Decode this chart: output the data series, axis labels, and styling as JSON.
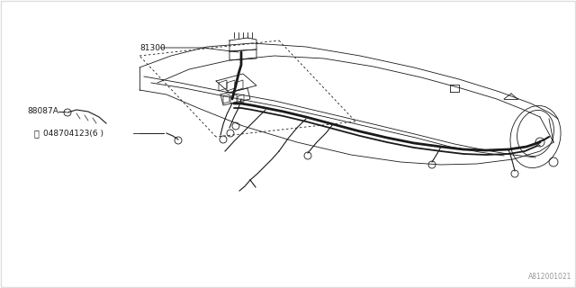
{
  "bg_color": "#ffffff",
  "line_color": "#1a1a1a",
  "thin_color": "#2a2a2a",
  "diagram_label": "A812001021",
  "label_81300": "81300",
  "label_88087A": "88087A",
  "label_screw": "048704123(6 )",
  "border_color": "#dddddd"
}
